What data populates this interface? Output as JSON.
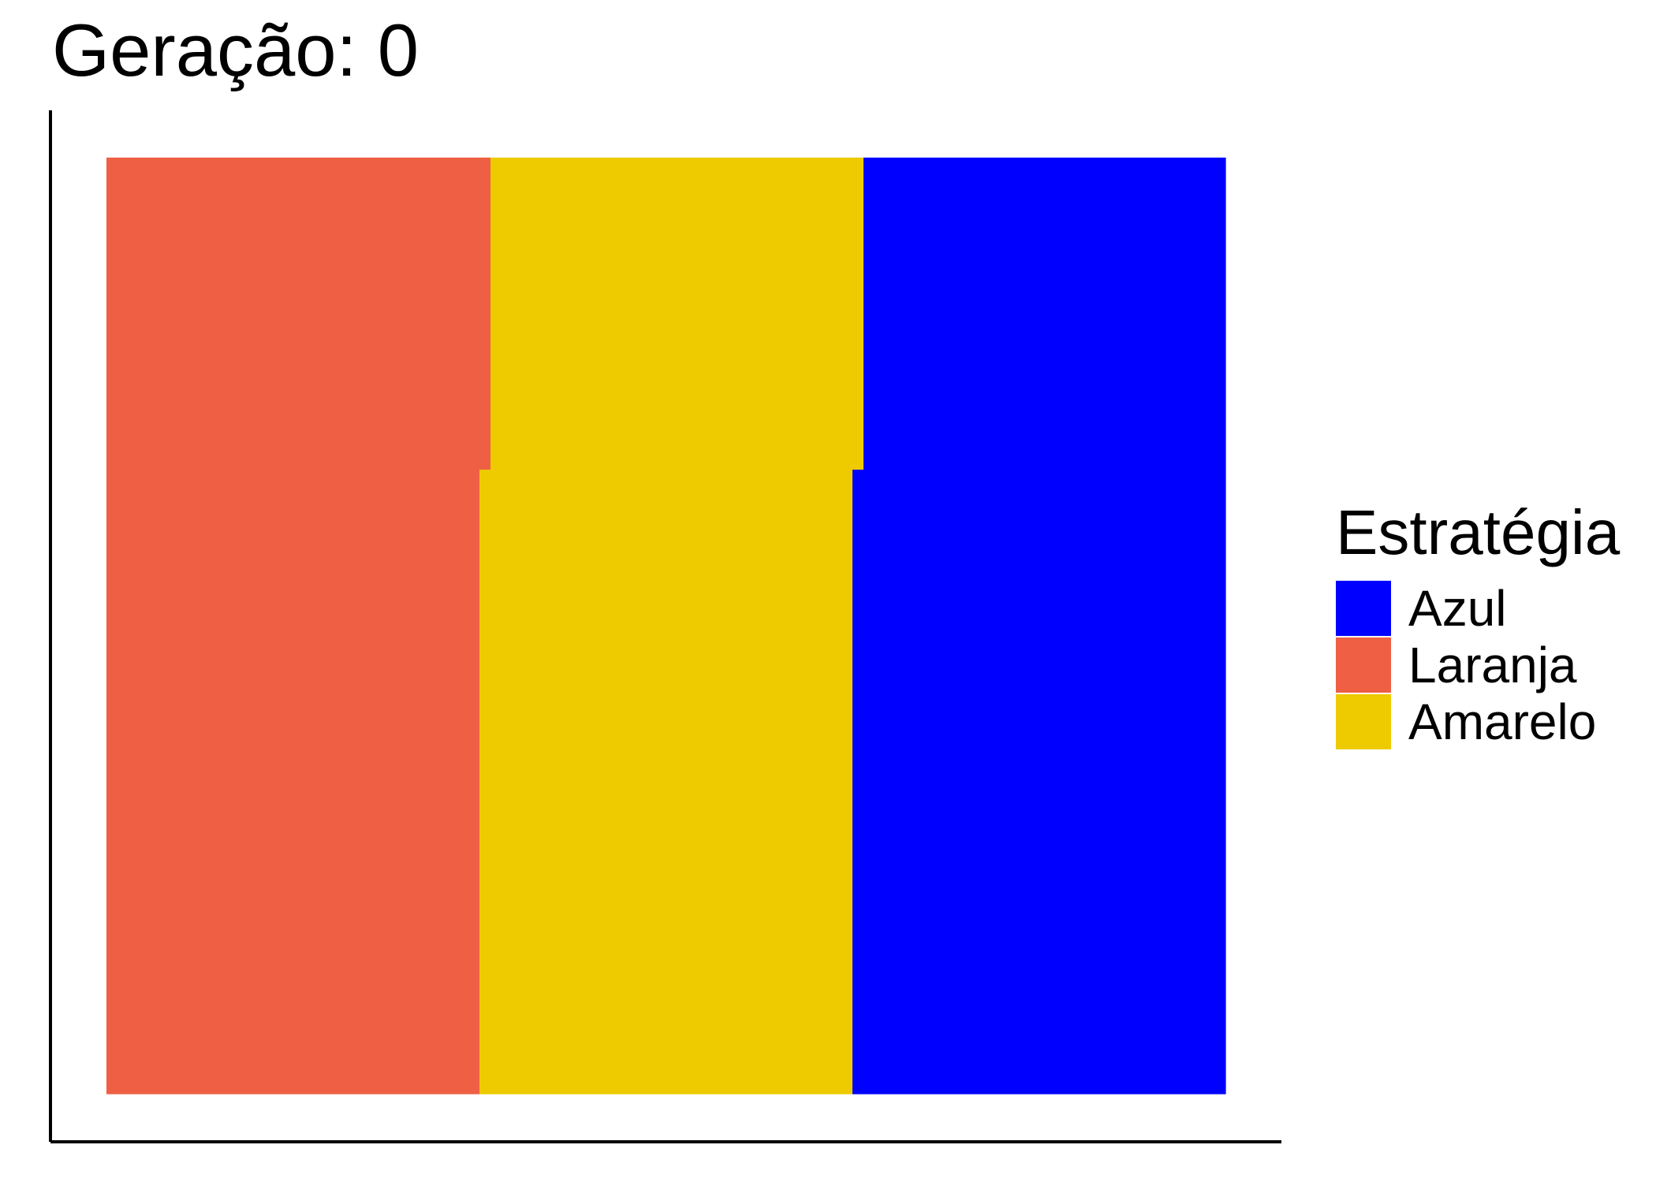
{
  "chart_data": {
    "type": "heatmap",
    "title": "Geração: 0",
    "grid": false,
    "legend": {
      "title": "Estratégia",
      "placement": "right",
      "entries": [
        {
          "name": "Azul",
          "color": "#0000FF"
        },
        {
          "name": "Laranja",
          "color": "#EE5F44"
        },
        {
          "name": "Amarelo",
          "color": "#EECA00"
        }
      ]
    },
    "grid_size": {
      "rows": 3,
      "cols": 3
    },
    "cells": [
      [
        "Laranja",
        "Amarelo",
        "Azul"
      ],
      [
        "Laranja",
        "Amarelo",
        "Azul"
      ],
      [
        "Laranja",
        "Amarelo",
        "Azul"
      ]
    ],
    "row_shift": [
      1,
      0,
      0
    ]
  }
}
